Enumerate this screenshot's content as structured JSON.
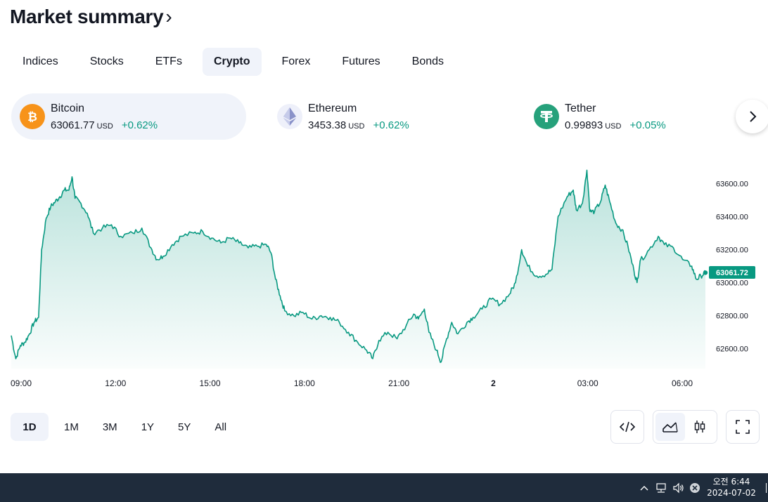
{
  "header": {
    "title": "Market summary",
    "chevron": "›"
  },
  "tabs": [
    {
      "label": "Indices",
      "active": false
    },
    {
      "label": "Stocks",
      "active": false
    },
    {
      "label": "ETFs",
      "active": false
    },
    {
      "label": "Crypto",
      "active": true
    },
    {
      "label": "Forex",
      "active": false
    },
    {
      "label": "Futures",
      "active": false
    },
    {
      "label": "Bonds",
      "active": false
    }
  ],
  "assets": [
    {
      "name": "Bitcoin",
      "price": "63061.77",
      "currency": "USD",
      "change": "+0.62%",
      "icon": "bitcoin-icon",
      "color": "#f7931a",
      "selected": true
    },
    {
      "name": "Ethereum",
      "price": "3453.38",
      "currency": "USD",
      "change": "+0.62%",
      "icon": "ethereum-icon",
      "color": "#627eea",
      "selected": false
    },
    {
      "name": "Tether",
      "price": "0.99893",
      "currency": "USD",
      "change": "+0.05%",
      "icon": "tether-icon",
      "color": "#26a17b",
      "selected": false
    }
  ],
  "colors": {
    "line": "#089981",
    "positive": "#089981",
    "accent_bg": "#f0f3fa",
    "taskbar": "#1f2c3c"
  },
  "chart_data": {
    "type": "area",
    "x_unit": "hours since 09:00",
    "x_ticks": [
      {
        "x": 0,
        "label": "09:00"
      },
      {
        "x": 3,
        "label": "12:00"
      },
      {
        "x": 6,
        "label": "15:00"
      },
      {
        "x": 9,
        "label": "18:00"
      },
      {
        "x": 12,
        "label": "21:00"
      },
      {
        "x": 15,
        "label": "2"
      },
      {
        "x": 18,
        "label": "03:00"
      },
      {
        "x": 21,
        "label": "06:00"
      }
    ],
    "y_ticks": [
      62600,
      62800,
      63000,
      63200,
      63400,
      63600
    ],
    "y_tick_labels": [
      "62600.00",
      "62800.00",
      "63000.00",
      "63200.00",
      "63400.00",
      "63600.00"
    ],
    "ylim": [
      62480,
      63720
    ],
    "xlim": [
      0,
      21.75
    ],
    "last_value": 63061.72,
    "last_label": "63061.72",
    "grid": false,
    "series": [
      {
        "values": [
          [
            0.0,
            62680
          ],
          [
            0.15,
            62540
          ],
          [
            0.3,
            62620
          ],
          [
            0.45,
            62640
          ],
          [
            0.6,
            62690
          ],
          [
            0.75,
            62760
          ],
          [
            0.9,
            62790
          ],
          [
            1.0,
            63200
          ],
          [
            1.15,
            63390
          ],
          [
            1.3,
            63460
          ],
          [
            1.45,
            63490
          ],
          [
            1.6,
            63520
          ],
          [
            1.75,
            63560
          ],
          [
            1.9,
            63560
          ],
          [
            2.0,
            63640
          ],
          [
            2.1,
            63510
          ],
          [
            2.25,
            63490
          ],
          [
            2.5,
            63420
          ],
          [
            2.7,
            63300
          ],
          [
            3.0,
            63330
          ],
          [
            3.3,
            63350
          ],
          [
            3.6,
            63280
          ],
          [
            4.0,
            63300
          ],
          [
            4.3,
            63330
          ],
          [
            4.6,
            63210
          ],
          [
            4.8,
            63140
          ],
          [
            5.0,
            63160
          ],
          [
            5.3,
            63230
          ],
          [
            5.6,
            63280
          ],
          [
            6.0,
            63300
          ],
          [
            6.3,
            63310
          ],
          [
            6.6,
            63270
          ],
          [
            6.9,
            63240
          ],
          [
            7.2,
            63270
          ],
          [
            7.5,
            63240
          ],
          [
            7.8,
            63210
          ],
          [
            8.1,
            63220
          ],
          [
            8.4,
            63230
          ],
          [
            8.55,
            63180
          ],
          [
            8.7,
            63020
          ],
          [
            8.85,
            62920
          ],
          [
            9.0,
            62830
          ],
          [
            9.3,
            62800
          ],
          [
            9.6,
            62820
          ],
          [
            9.9,
            62780
          ],
          [
            10.2,
            62800
          ],
          [
            10.5,
            62790
          ],
          [
            10.8,
            62760
          ],
          [
            11.1,
            62700
          ],
          [
            11.4,
            62640
          ],
          [
            11.7,
            62590
          ],
          [
            11.9,
            62540
          ],
          [
            12.1,
            62650
          ],
          [
            12.4,
            62700
          ],
          [
            12.7,
            62660
          ],
          [
            13.0,
            62740
          ],
          [
            13.25,
            62810
          ],
          [
            13.4,
            62780
          ],
          [
            13.6,
            62840
          ],
          [
            13.75,
            62700
          ],
          [
            14.0,
            62590
          ],
          [
            14.15,
            62520
          ],
          [
            14.3,
            62640
          ],
          [
            14.5,
            62760
          ],
          [
            14.7,
            62690
          ],
          [
            15.0,
            62760
          ],
          [
            15.2,
            62790
          ],
          [
            15.5,
            62840
          ],
          [
            15.8,
            62900
          ],
          [
            16.1,
            62870
          ],
          [
            16.4,
            62930
          ],
          [
            16.6,
            63000
          ],
          [
            16.8,
            63200
          ],
          [
            17.0,
            63100
          ],
          [
            17.3,
            63040
          ],
          [
            17.6,
            63050
          ],
          [
            17.8,
            63080
          ],
          [
            18.0,
            63400
          ],
          [
            18.3,
            63520
          ],
          [
            18.5,
            63560
          ],
          [
            18.6,
            63440
          ],
          [
            18.8,
            63480
          ],
          [
            18.95,
            63680
          ],
          [
            19.05,
            63430
          ],
          [
            19.2,
            63430
          ],
          [
            19.4,
            63490
          ],
          [
            19.55,
            63590
          ],
          [
            19.7,
            63490
          ],
          [
            19.9,
            63360
          ],
          [
            20.1,
            63320
          ],
          [
            20.3,
            63220
          ],
          [
            20.5,
            63070
          ],
          [
            20.6,
            63000
          ],
          [
            20.7,
            63130
          ],
          [
            21.0,
            63200
          ],
          [
            21.3,
            63280
          ],
          [
            21.5,
            63230
          ],
          [
            21.8,
            63210
          ],
          [
            22.1,
            63140
          ],
          [
            22.4,
            63100
          ],
          [
            22.55,
            63020
          ],
          [
            22.7,
            63040
          ],
          [
            22.85,
            63060
          ]
        ]
      }
    ]
  },
  "ranges": [
    {
      "label": "1D",
      "active": true
    },
    {
      "label": "1M",
      "active": false
    },
    {
      "label": "3M",
      "active": false
    },
    {
      "label": "1Y",
      "active": false
    },
    {
      "label": "5Y",
      "active": false
    },
    {
      "label": "All",
      "active": false
    }
  ],
  "tools": {
    "embed_icon": "code-icon",
    "area_icon": "area-chart-icon",
    "candle_icon": "candlestick-icon",
    "fullscreen_icon": "fullscreen-icon"
  },
  "taskbar": {
    "time": "오전 6:44",
    "date": "2024-07-02"
  }
}
